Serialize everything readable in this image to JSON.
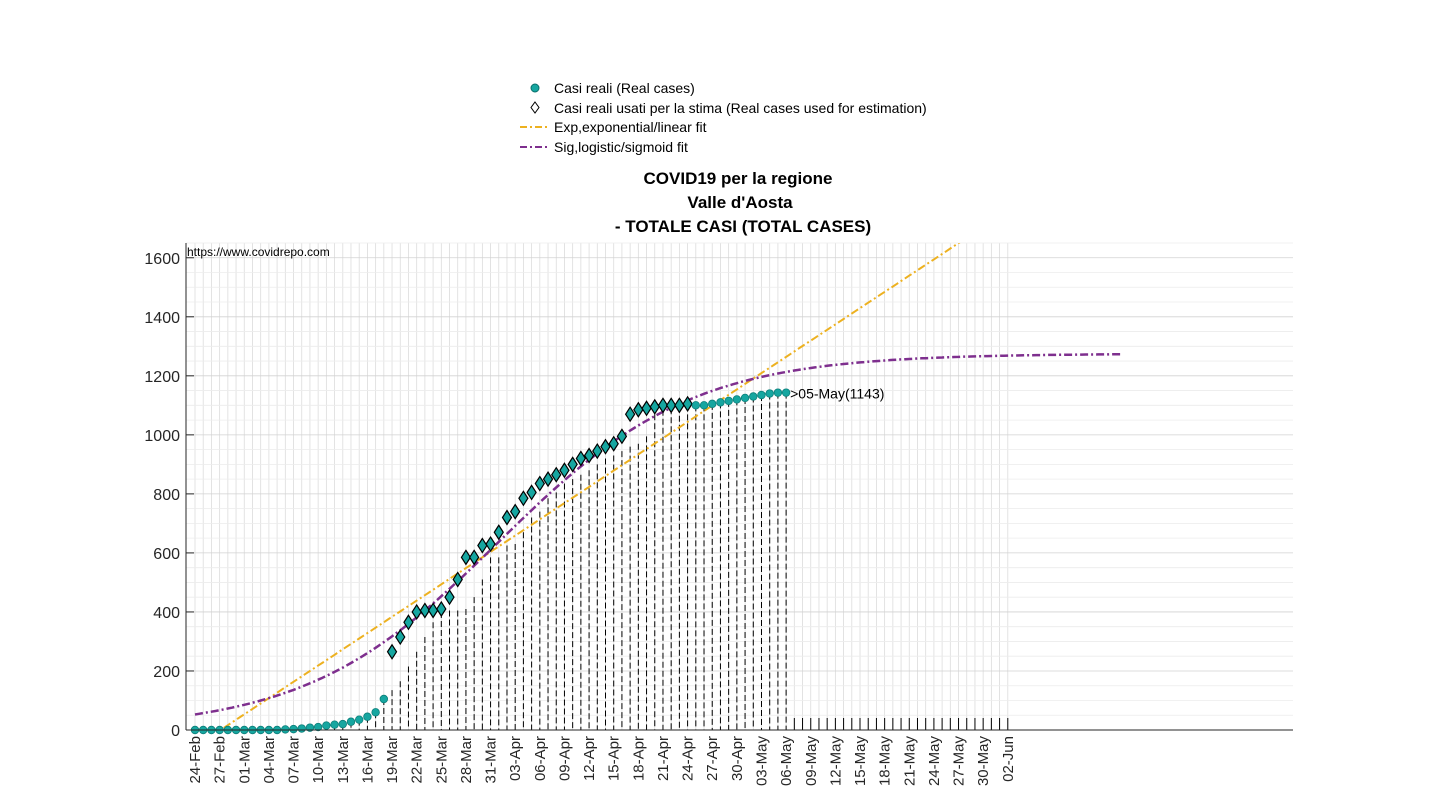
{
  "chart_data": {
    "type": "line",
    "title": [
      "COVID19 per la regione",
      "Valle d'Aosta",
      "- TOTALE CASI (TOTAL CASES)"
    ],
    "source_text": "https://www.covidrepo.com",
    "annotation": ">05-May(1143)",
    "x_start_date": "2020-02-24",
    "x_tick_labels": [
      "24-Feb",
      "27-Feb",
      "01-Mar",
      "04-Mar",
      "07-Mar",
      "10-Mar",
      "13-Mar",
      "16-Mar",
      "19-Mar",
      "22-Mar",
      "25-Mar",
      "28-Mar",
      "31-Mar",
      "03-Apr",
      "06-Apr",
      "09-Apr",
      "12-Apr",
      "15-Apr",
      "18-Apr",
      "21-Apr",
      "24-Apr",
      "27-Apr",
      "30-Apr",
      "03-May",
      "06-May",
      "09-May",
      "12-May",
      "15-May",
      "18-May",
      "21-May",
      "24-May",
      "27-May",
      "30-May",
      "02-Jun"
    ],
    "ylim": [
      0,
      1650
    ],
    "y_ticks": [
      0,
      200,
      400,
      600,
      800,
      1000,
      1200,
      1400,
      1600
    ],
    "grid": true,
    "legend": {
      "position": "top-center",
      "entries": [
        {
          "name": "Casi reali (Real cases)",
          "marker": "filled-circle",
          "color": "#16a6a0"
        },
        {
          "name": "Casi reali usati per la stima (Real cases used for estimation)",
          "marker": "diamond",
          "color": "#000000"
        },
        {
          "name": "Exp,exponential/linear fit",
          "style": "dash-dot",
          "color": "#edb120"
        },
        {
          "name": "Sig,logistic/sigmoid fit",
          "style": "dash-dot",
          "color": "#7e2f8e"
        }
      ]
    },
    "series": [
      {
        "name": "Casi reali (Real cases)",
        "start_date": "2020-02-24",
        "values": [
          0,
          0,
          0,
          0,
          0,
          0,
          0,
          0,
          0,
          0,
          0,
          2,
          3,
          5,
          8,
          10,
          15,
          18,
          20,
          28,
          35,
          45,
          60,
          105,
          135,
          165,
          215,
          265,
          315,
          365,
          400,
          405,
          405,
          410,
          450,
          510,
          585,
          585,
          625,
          630,
          670,
          720,
          740,
          785,
          805,
          835,
          850,
          865,
          880,
          900,
          920,
          930,
          945,
          960,
          970,
          995,
          1070,
          1085,
          1090,
          1095,
          1100,
          1100,
          1100,
          1105,
          1110,
          1115,
          1120,
          1125,
          1130,
          1135,
          1140,
          1143,
          1143
        ]
      },
      {
        "name": "Casi reali usati per la stima (Real cases used for estimation)",
        "start_date": "2020-03-19",
        "values": [
          265,
          315,
          365,
          400,
          405,
          405,
          410,
          450,
          510,
          585,
          585,
          625,
          630,
          670,
          720,
          740,
          785,
          805,
          835,
          850,
          865,
          880,
          900,
          920,
          930,
          945,
          960,
          970,
          995,
          1070,
          1085,
          1090,
          1095,
          1100,
          1100,
          1100,
          1105
        ]
      },
      {
        "name": "Exp,exponential/linear fit",
        "x_days": [
          3,
          99
        ],
        "linear_fit": {
          "slope": 18.35,
          "intercept": -57
        }
      },
      {
        "name": "Sig,logistic/sigmoid fit",
        "x_days": [
          0,
          113
        ],
        "logistic_fit": {
          "L": 1275,
          "k": 0.085,
          "x0": 37
        }
      }
    ]
  }
}
